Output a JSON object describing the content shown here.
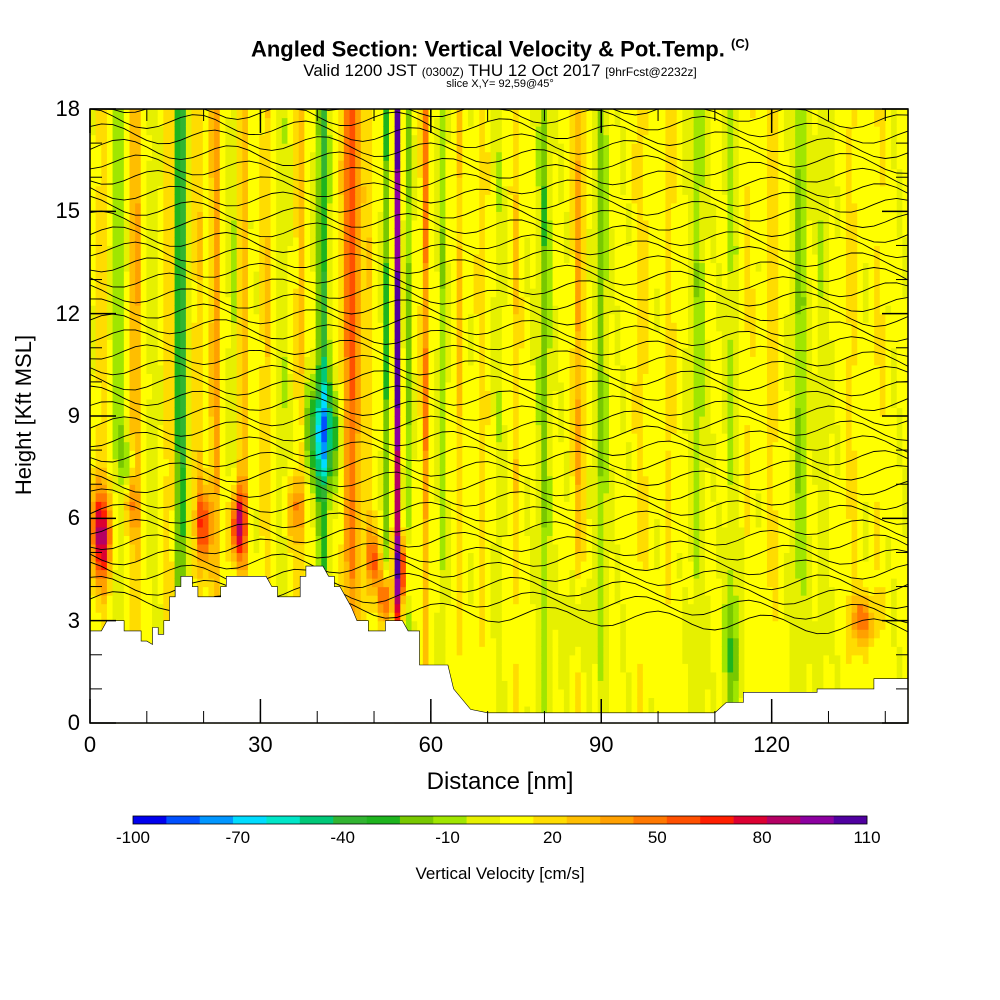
{
  "header": {
    "title": "Angled Section: Vertical Velocity & Pot.Temp.",
    "title_mark": "(C)",
    "subtitle_a": "Valid 1200 JST",
    "subtitle_b": "(0300Z)",
    "subtitle_c": "THU 12 Oct 2017",
    "subtitle_d": "[9hrFcst@2232z]",
    "slice": "slice X,Y= 92,59@45°"
  },
  "chart_data": {
    "type": "heatmap",
    "xlabel": "Distance [nm]",
    "ylabel": "Height [Kft MSL]",
    "xlim": [
      0,
      144
    ],
    "ylim": [
      0,
      18
    ],
    "x_ticks": [
      "0",
      "30",
      "60",
      "90",
      "120"
    ],
    "y_ticks": [
      "0",
      "3",
      "6",
      "9",
      "12",
      "15",
      "18"
    ],
    "colorbar": {
      "title": "Vertical Velocity [cm/s]",
      "ticks": [
        "-100",
        "-70",
        "-40",
        "-10",
        "20",
        "50",
        "80",
        "110"
      ],
      "levels": [
        -100,
        -90,
        -80,
        -70,
        -60,
        -50,
        -40,
        -30,
        -20,
        -10,
        0,
        10,
        20,
        30,
        40,
        50,
        60,
        70,
        80,
        90,
        100,
        110
      ],
      "colors": [
        "#0000ee",
        "#0050ff",
        "#0096ff",
        "#00dcff",
        "#00e6c8",
        "#00c878",
        "#32b432",
        "#1eb41e",
        "#78c800",
        "#a0e600",
        "#e6f000",
        "#ffff00",
        "#ffdc00",
        "#ffbe00",
        "#ffa000",
        "#ff7800",
        "#ff5000",
        "#ff1e00",
        "#dc0032",
        "#b40064",
        "#8c00a0",
        "#5000a0"
      ]
    },
    "terrain_kft": [
      [
        0,
        2.7
      ],
      [
        2,
        2.7
      ],
      [
        3,
        3.0
      ],
      [
        6,
        3.0
      ],
      [
        6,
        2.7
      ],
      [
        8,
        2.7
      ],
      [
        9,
        2.7
      ],
      [
        9,
        2.4
      ],
      [
        10,
        2.4
      ],
      [
        11,
        2.3
      ],
      [
        11,
        2.8
      ],
      [
        12,
        2.8
      ],
      [
        12,
        2.6
      ],
      [
        13,
        2.6
      ],
      [
        13,
        3.0
      ],
      [
        14,
        3.0
      ],
      [
        14,
        3.7
      ],
      [
        15,
        3.7
      ],
      [
        15,
        4.0
      ],
      [
        16,
        4.0
      ],
      [
        16,
        4.3
      ],
      [
        18,
        4.3
      ],
      [
        18,
        4.0
      ],
      [
        19,
        4.0
      ],
      [
        19,
        3.7
      ],
      [
        23,
        3.7
      ],
      [
        23,
        4.0
      ],
      [
        24,
        4.0
      ],
      [
        24,
        4.3
      ],
      [
        31,
        4.3
      ],
      [
        32,
        4.0
      ],
      [
        33,
        4.0
      ],
      [
        33,
        3.7
      ],
      [
        37,
        3.7
      ],
      [
        37,
        4.3
      ],
      [
        38,
        4.3
      ],
      [
        38,
        4.6
      ],
      [
        41,
        4.6
      ],
      [
        42,
        4.3
      ],
      [
        43,
        4.3
      ],
      [
        43,
        4.0
      ],
      [
        44,
        4.0
      ],
      [
        45,
        3.7
      ],
      [
        46,
        3.4
      ],
      [
        47,
        3.0
      ],
      [
        49,
        3.0
      ],
      [
        49,
        2.7
      ],
      [
        52,
        2.7
      ],
      [
        52,
        3.0
      ],
      [
        55,
        3.0
      ],
      [
        56,
        2.7
      ],
      [
        58,
        2.7
      ],
      [
        58,
        1.7
      ],
      [
        63,
        1.7
      ],
      [
        64,
        1.0
      ],
      [
        67,
        0.4
      ],
      [
        70,
        0.3
      ],
      [
        110,
        0.3
      ],
      [
        112,
        0.6
      ],
      [
        115,
        0.6
      ],
      [
        115,
        0.9
      ],
      [
        128,
        0.9
      ],
      [
        128,
        1.0
      ],
      [
        138,
        1.0
      ],
      [
        138,
        1.3
      ],
      [
        144,
        1.3
      ]
    ],
    "isentropes_C": [
      10,
      20,
      30,
      40,
      50,
      60
    ]
  }
}
